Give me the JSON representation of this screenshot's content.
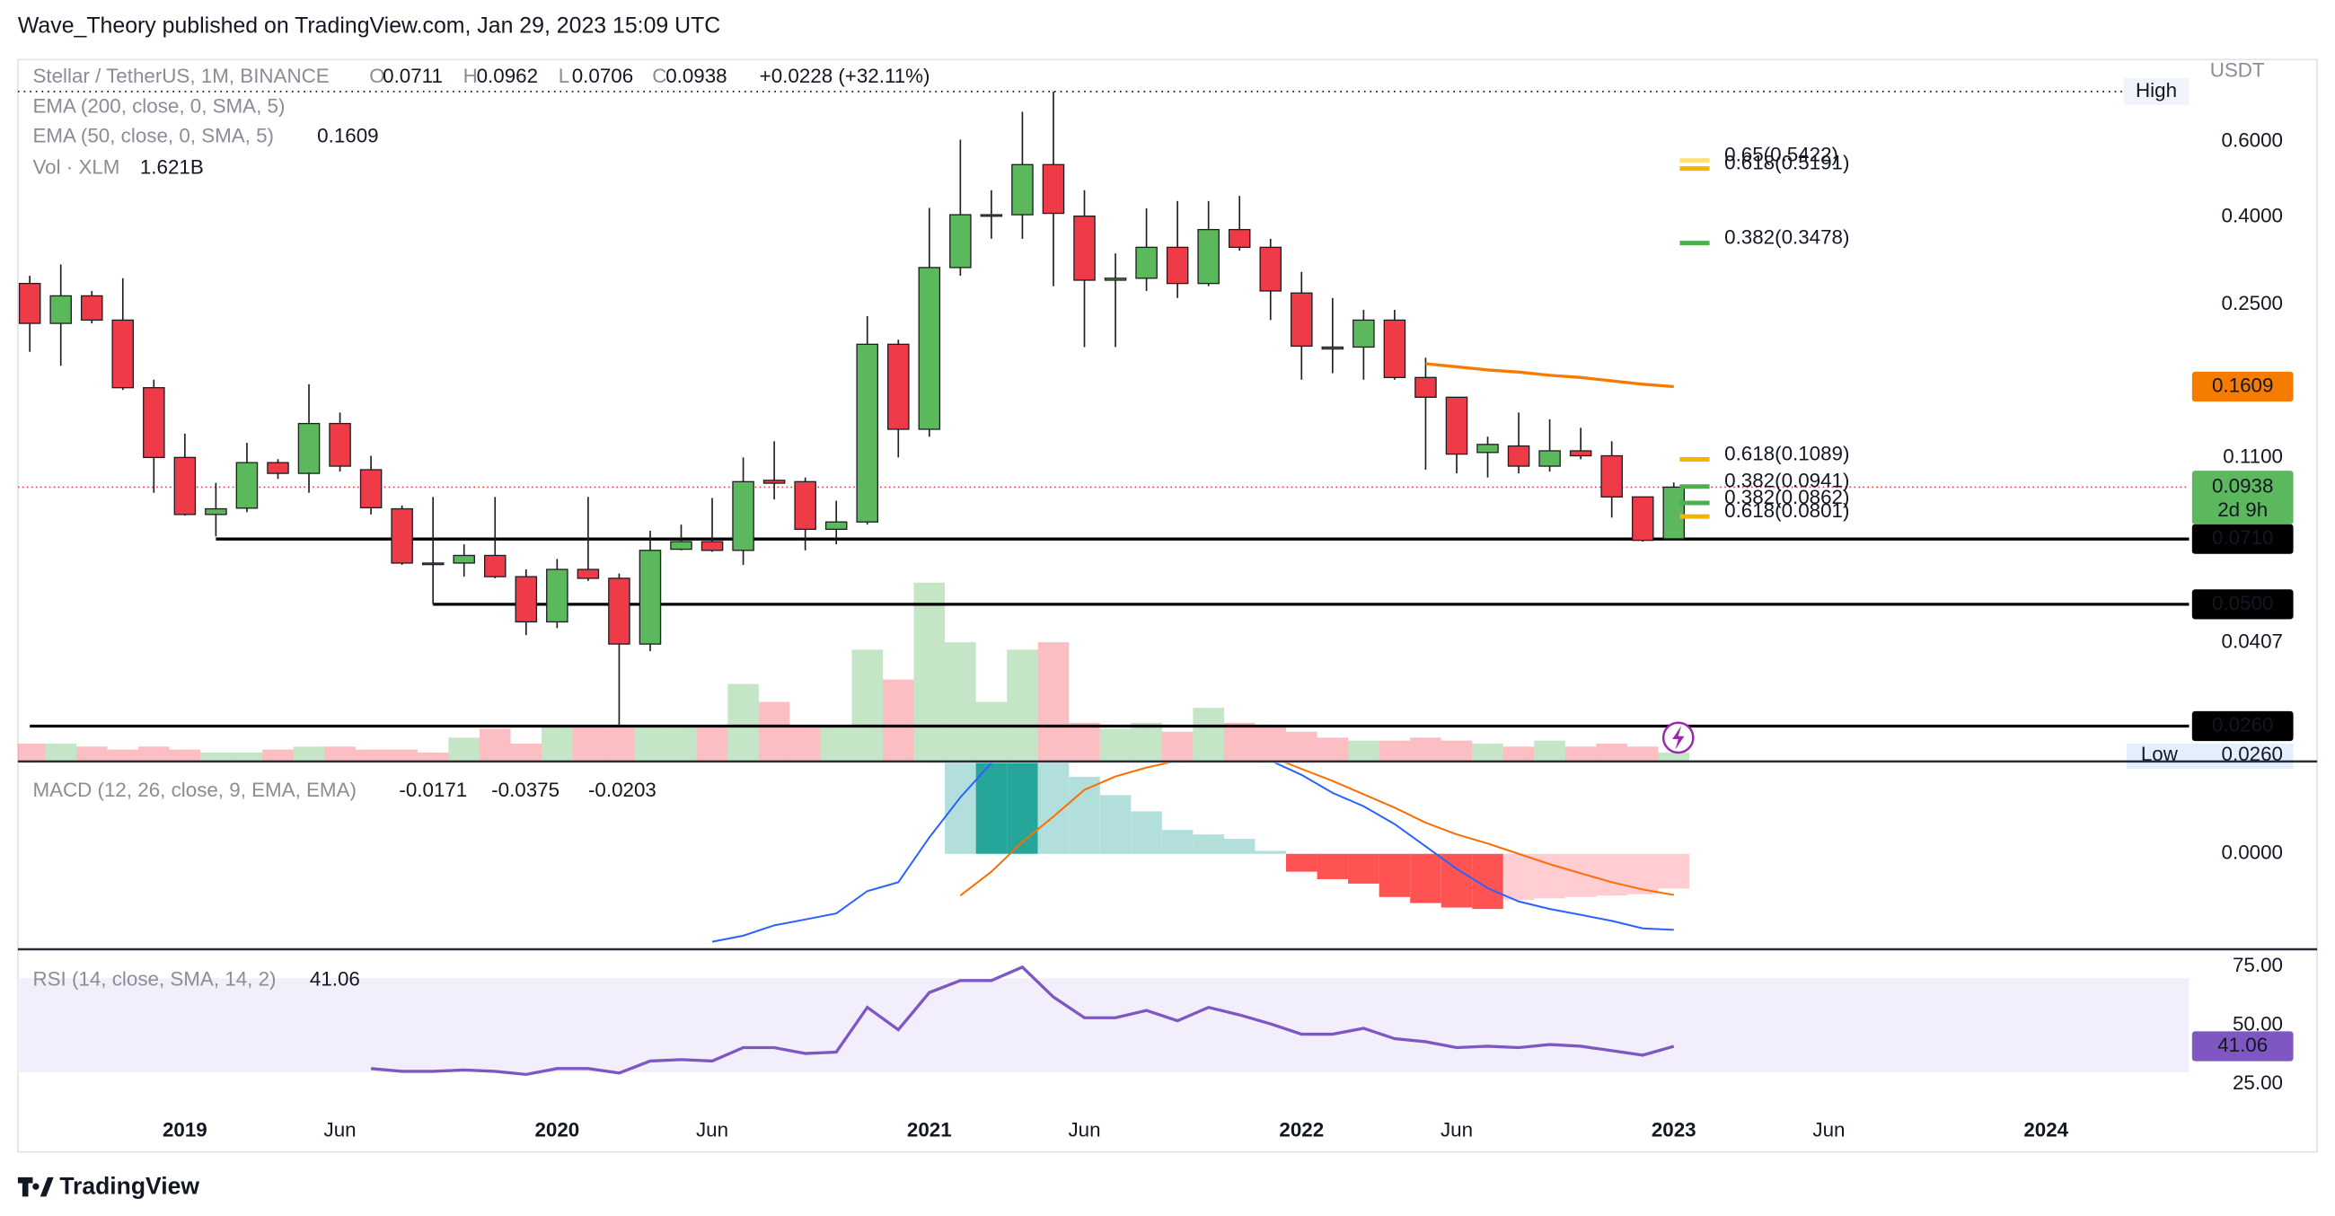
{
  "header": "Wave_Theory published on TradingView.com, Jan 29, 2023 15:09 UTC",
  "brand": "TradingView",
  "chart_data": {
    "type": "candlestick",
    "symbol": "Stellar / TetherUS, 1M, BINANCE",
    "ohlc_prefixes": [
      "O",
      "H",
      "L",
      "C"
    ],
    "change_label": "+0.0228 (+32.11%)",
    "unit": "USDT",
    "countdown": "2d 9h",
    "log_scale": true,
    "ylim": [
      0.0215,
      0.895
    ],
    "yticks": [
      {
        "value": 0.6,
        "label": "0.6000"
      },
      {
        "value": 0.4,
        "label": "0.4000"
      },
      {
        "value": 0.25,
        "label": "0.2500"
      },
      {
        "value": 0.11,
        "label": "0.1100"
      },
      0.0407
    ],
    "xticks": [
      {
        "value": "2019-01",
        "label": "2019"
      },
      {
        "value": "2019-06",
        "label": "Jun"
      },
      {
        "value": "2020-01",
        "label": "2020"
      },
      {
        "value": "2020-06",
        "label": "Jun"
      },
      {
        "value": "2021-01",
        "label": "2021"
      },
      {
        "value": "2021-06",
        "label": "Jun"
      },
      {
        "value": "2022-01",
        "label": "2022"
      },
      {
        "value": "2022-06",
        "label": "Jun"
      },
      {
        "value": "2023-01",
        "label": "2023"
      },
      {
        "value": "2023-06",
        "label": "Jun"
      },
      {
        "value": "2024-01",
        "label": "2024"
      }
    ],
    "colors": {
      "up": "#5cb85c",
      "down": "#ef3b48",
      "outline": "#1e1f24",
      "volume_up": "rgba(76,175,80,0.32)",
      "volume_down": "rgba(242,54,69,0.32)",
      "last": "#5cb85c",
      "level": "#000000"
    },
    "x": [
      "2018-08",
      "2018-09",
      "2018-10",
      "2018-11",
      "2018-12",
      "2019-01",
      "2019-02",
      "2019-03",
      "2019-04",
      "2019-05",
      "2019-06",
      "2019-07",
      "2019-08",
      "2019-09",
      "2019-10",
      "2019-11",
      "2019-12",
      "2020-01",
      "2020-02",
      "2020-03",
      "2020-04",
      "2020-05",
      "2020-06",
      "2020-07",
      "2020-08",
      "2020-09",
      "2020-10",
      "2020-11",
      "2020-12",
      "2021-01",
      "2021-02",
      "2021-03",
      "2021-04",
      "2021-05",
      "2021-06",
      "2021-07",
      "2021-08",
      "2021-09",
      "2021-10",
      "2021-11",
      "2021-12",
      "2022-01",
      "2022-02",
      "2022-03",
      "2022-04",
      "2022-05",
      "2022-06",
      "2022-07",
      "2022-08",
      "2022-09",
      "2022-10",
      "2022-11",
      "2022-12",
      "2023-01"
    ],
    "open": [
      0.28,
      0.226,
      0.262,
      0.23,
      0.16,
      0.11,
      0.081,
      0.0838,
      0.107,
      0.101,
      0.132,
      0.103,
      0.0835,
      0.0624,
      0.0624,
      0.065,
      0.058,
      0.0455,
      0.0603,
      0.0575,
      0.0404,
      0.0672,
      0.07,
      0.0668,
      0.0973,
      0.0966,
      0.0748,
      0.0778,
      0.202,
      0.128,
      0.305,
      0.402,
      0.405,
      0.53,
      0.402,
      0.285,
      0.288,
      0.34,
      0.28,
      0.374,
      0.34,
      0.266,
      0.199,
      0.199,
      0.23,
      0.169,
      0.152,
      0.113,
      0.117,
      0.105,
      0.114,
      0.111,
      0.089,
      0.0711
    ],
    "high": [
      0.292,
      0.31,
      0.269,
      0.288,
      0.167,
      0.125,
      0.096,
      0.119,
      0.109,
      0.163,
      0.14,
      0.111,
      0.085,
      0.089,
      0.069,
      0.089,
      0.0603,
      0.0638,
      0.089,
      0.059,
      0.0742,
      0.0767,
      0.0885,
      0.11,
      0.12,
      0.0988,
      0.0872,
      0.235,
      0.207,
      0.42,
      0.606,
      0.462,
      0.704,
      0.785,
      0.462,
      0.329,
      0.419,
      0.436,
      0.436,
      0.448,
      0.356,
      0.298,
      0.259,
      0.243,
      0.243,
      0.188,
      0.152,
      0.123,
      0.14,
      0.135,
      0.129,
      0.12,
      0.089,
      0.0962
    ],
    "low": [
      0.194,
      0.18,
      0.226,
      0.158,
      0.091,
      0.0805,
      0.072,
      0.082,
      0.098,
      0.091,
      0.102,
      0.081,
      0.0618,
      0.05,
      0.058,
      0.0575,
      0.0424,
      0.044,
      0.0567,
      0.026,
      0.0389,
      0.0668,
      0.0663,
      0.0618,
      0.0878,
      0.0668,
      0.069,
      0.0767,
      0.11,
      0.123,
      0.292,
      0.356,
      0.356,
      0.276,
      0.199,
      0.199,
      0.269,
      0.259,
      0.276,
      0.334,
      0.23,
      0.167,
      0.173,
      0.167,
      0.167,
      0.103,
      0.101,
      0.0988,
      0.101,
      0.102,
      0.109,
      0.0797,
      0.07,
      0.0706
    ],
    "close": [
      0.226,
      0.262,
      0.23,
      0.16,
      0.11,
      0.081,
      0.0835,
      0.107,
      0.101,
      0.132,
      0.105,
      0.084,
      0.0624,
      0.062,
      0.065,
      0.058,
      0.0455,
      0.0603,
      0.0575,
      0.0404,
      0.0668,
      0.07,
      0.0668,
      0.0966,
      0.0958,
      0.0748,
      0.0778,
      0.202,
      0.128,
      0.305,
      0.405,
      0.405,
      0.53,
      0.408,
      0.285,
      0.288,
      0.34,
      0.28,
      0.374,
      0.34,
      0.269,
      0.2,
      0.197,
      0.23,
      0.169,
      0.152,
      0.112,
      0.118,
      0.105,
      0.114,
      0.111,
      0.089,
      0.0705,
      0.0938
    ],
    "ema200_label": "EMA (200, close, 0, SMA, 5)",
    "ema50": {
      "name": "EMA (50, close, 0, SMA, 5)",
      "color": "#f57c00",
      "values": [
        null,
        null,
        null,
        null,
        null,
        null,
        null,
        null,
        null,
        null,
        null,
        null,
        null,
        null,
        null,
        null,
        null,
        null,
        null,
        null,
        null,
        null,
        null,
        null,
        null,
        null,
        null,
        null,
        null,
        null,
        null,
        null,
        null,
        null,
        null,
        null,
        null,
        null,
        null,
        null,
        null,
        null,
        null,
        null,
        null,
        0.182,
        0.179,
        0.176,
        0.174,
        0.171,
        0.169,
        0.166,
        0.163,
        0.1609
      ]
    },
    "volume": {
      "name": "Vol · XLM",
      "value_label": "1.621B",
      "color": "#4caf50",
      "ylim": [
        0,
        125.8
      ],
      "values": [
        3.24,
        3.24,
        2.7,
        2.16,
        2.7,
        2.16,
        1.62,
        1.62,
        2.16,
        2.7,
        2.7,
        2.16,
        2.16,
        1.62,
        4.32,
        5.94,
        3.24,
        6.48,
        6.48,
        6.48,
        6.48,
        6.48,
        6.48,
        14.04,
        10.8,
        6.48,
        6.48,
        20.25,
        14.85,
        32.4,
        21.6,
        10.8,
        20.25,
        21.6,
        7.02,
        5.94,
        7.02,
        5.4,
        9.72,
        7.02,
        6.48,
        5.4,
        4.32,
        3.78,
        3.78,
        4.32,
        3.78,
        3.24,
        2.7,
        3.78,
        2.7,
        3.24,
        2.7,
        1.621
      ]
    },
    "levels": [
      {
        "value": 0.071,
        "label": "0.0710",
        "from": "2019-02"
      },
      {
        "value": 0.05,
        "label": "0.0500",
        "from": "2019-09"
      },
      {
        "value": 0.026,
        "label": "0.0260",
        "from": "2018-08"
      }
    ],
    "high_label": "High",
    "low_label": "Low",
    "low_value_label": "0.0260",
    "fib_levels": [
      {
        "label": "0.65(0.5422)",
        "value": 0.5422,
        "color": "#fde27a"
      },
      {
        "label": "0.618(0.5191)",
        "value": 0.5191,
        "color": "#f5b301"
      },
      {
        "label": "0.382(0.3478)",
        "value": 0.3478,
        "color": "#4caf50"
      },
      {
        "label": "0.618(0.1089)",
        "value": 0.1089,
        "color": "#f5b301"
      },
      {
        "label": "0.382(0.0941)",
        "value": 0.0941,
        "color": "#4caf50"
      },
      {
        "label": "0.382(0.0862)",
        "value": 0.0862,
        "color": "#4caf50"
      },
      {
        "label": "0.618(0.0801)",
        "value": 0.0801,
        "color": "#f5b301"
      }
    ],
    "macd": {
      "title": "MACD (12, 26, close, 9, EMA, EMA)",
      "ylim": [
        -0.0471,
        0.0456
      ],
      "yticks": [
        {
          "value": 0,
          "label": "0.0000"
        }
      ],
      "histogram": {
        "colors": {
          "grow_up": "#26a69a",
          "fall_up": "#b2dfdb",
          "fall_down": "#ff5252",
          "grow_down": "#ffcdd2"
        },
        "values": [
          null,
          null,
          null,
          null,
          null,
          null,
          null,
          null,
          null,
          null,
          null,
          null,
          null,
          null,
          null,
          null,
          null,
          null,
          null,
          null,
          null,
          null,
          null,
          null,
          null,
          null,
          null,
          null,
          null,
          null,
          0.05,
          0.06,
          0.062,
          0.05,
          0.038,
          0.029,
          0.021,
          0.0118,
          0.0096,
          0.0074,
          0.0015,
          -0.0088,
          -0.0125,
          -0.0147,
          -0.0213,
          -0.0243,
          -0.0265,
          -0.0272,
          -0.0228,
          -0.022,
          -0.0213,
          -0.0206,
          -0.0199,
          -0.0171
        ]
      },
      "macd": {
        "color": "#2962ff",
        "values": [
          null,
          null,
          null,
          null,
          null,
          null,
          null,
          null,
          null,
          null,
          null,
          null,
          null,
          null,
          null,
          null,
          null,
          null,
          null,
          null,
          null,
          null,
          -0.0434,
          -0.0404,
          -0.0353,
          -0.0324,
          -0.0294,
          -0.0184,
          -0.014,
          0.0081,
          0.0279,
          0.0449,
          0.06,
          0.075,
          0.08,
          0.083,
          0.08,
          0.075,
          0.068,
          0.058,
          0.046,
          0.039,
          0.0301,
          0.0235,
          0.0147,
          0.0037,
          -0.0074,
          -0.0169,
          -0.0235,
          -0.0272,
          -0.0301,
          -0.0331,
          -0.0368,
          -0.0375
        ]
      },
      "signal": {
        "color": "#ff6d00",
        "values": [
          null,
          null,
          null,
          null,
          null,
          null,
          null,
          null,
          null,
          null,
          null,
          null,
          null,
          null,
          null,
          null,
          null,
          null,
          null,
          null,
          null,
          null,
          null,
          null,
          null,
          null,
          null,
          null,
          null,
          null,
          -0.0206,
          -0.0088,
          0.0059,
          0.0184,
          0.0316,
          0.0382,
          0.0426,
          0.046,
          0.048,
          0.049,
          0.048,
          0.0419,
          0.036,
          0.0294,
          0.0228,
          0.0154,
          0.0096,
          0.0051,
          0,
          -0.0051,
          -0.0096,
          -0.014,
          -0.0176,
          -0.0203
        ]
      }
    },
    "rsi": {
      "title": "RSI (14, close, SMA, 14, 2)",
      "color": "#7e57c2",
      "band": [
        30,
        70
      ],
      "band_color": "#f3eefb",
      "ylim": [
        13.9,
        82.3
      ],
      "yticks": [
        {
          "value": 75,
          "label": "75.00"
        },
        {
          "value": 50,
          "label": "50.00"
        },
        {
          "value": 25,
          "label": "25.00"
        }
      ],
      "values": [
        null,
        null,
        null,
        null,
        null,
        null,
        null,
        null,
        null,
        null,
        null,
        31.6,
        30.4,
        30.4,
        31,
        30.4,
        29.1,
        31.6,
        31.6,
        29.7,
        34.8,
        35.4,
        34.8,
        40.5,
        40.5,
        38,
        38.6,
        57.6,
        48.1,
        63.9,
        69,
        69,
        74.7,
        62,
        53.2,
        53.2,
        56.3,
        51.9,
        57.6,
        54.4,
        50.6,
        46.2,
        46.2,
        48.7,
        44.3,
        43,
        40.5,
        41.1,
        40.5,
        41.8,
        41.1,
        39.2,
        37.3,
        41.06
      ]
    }
  }
}
